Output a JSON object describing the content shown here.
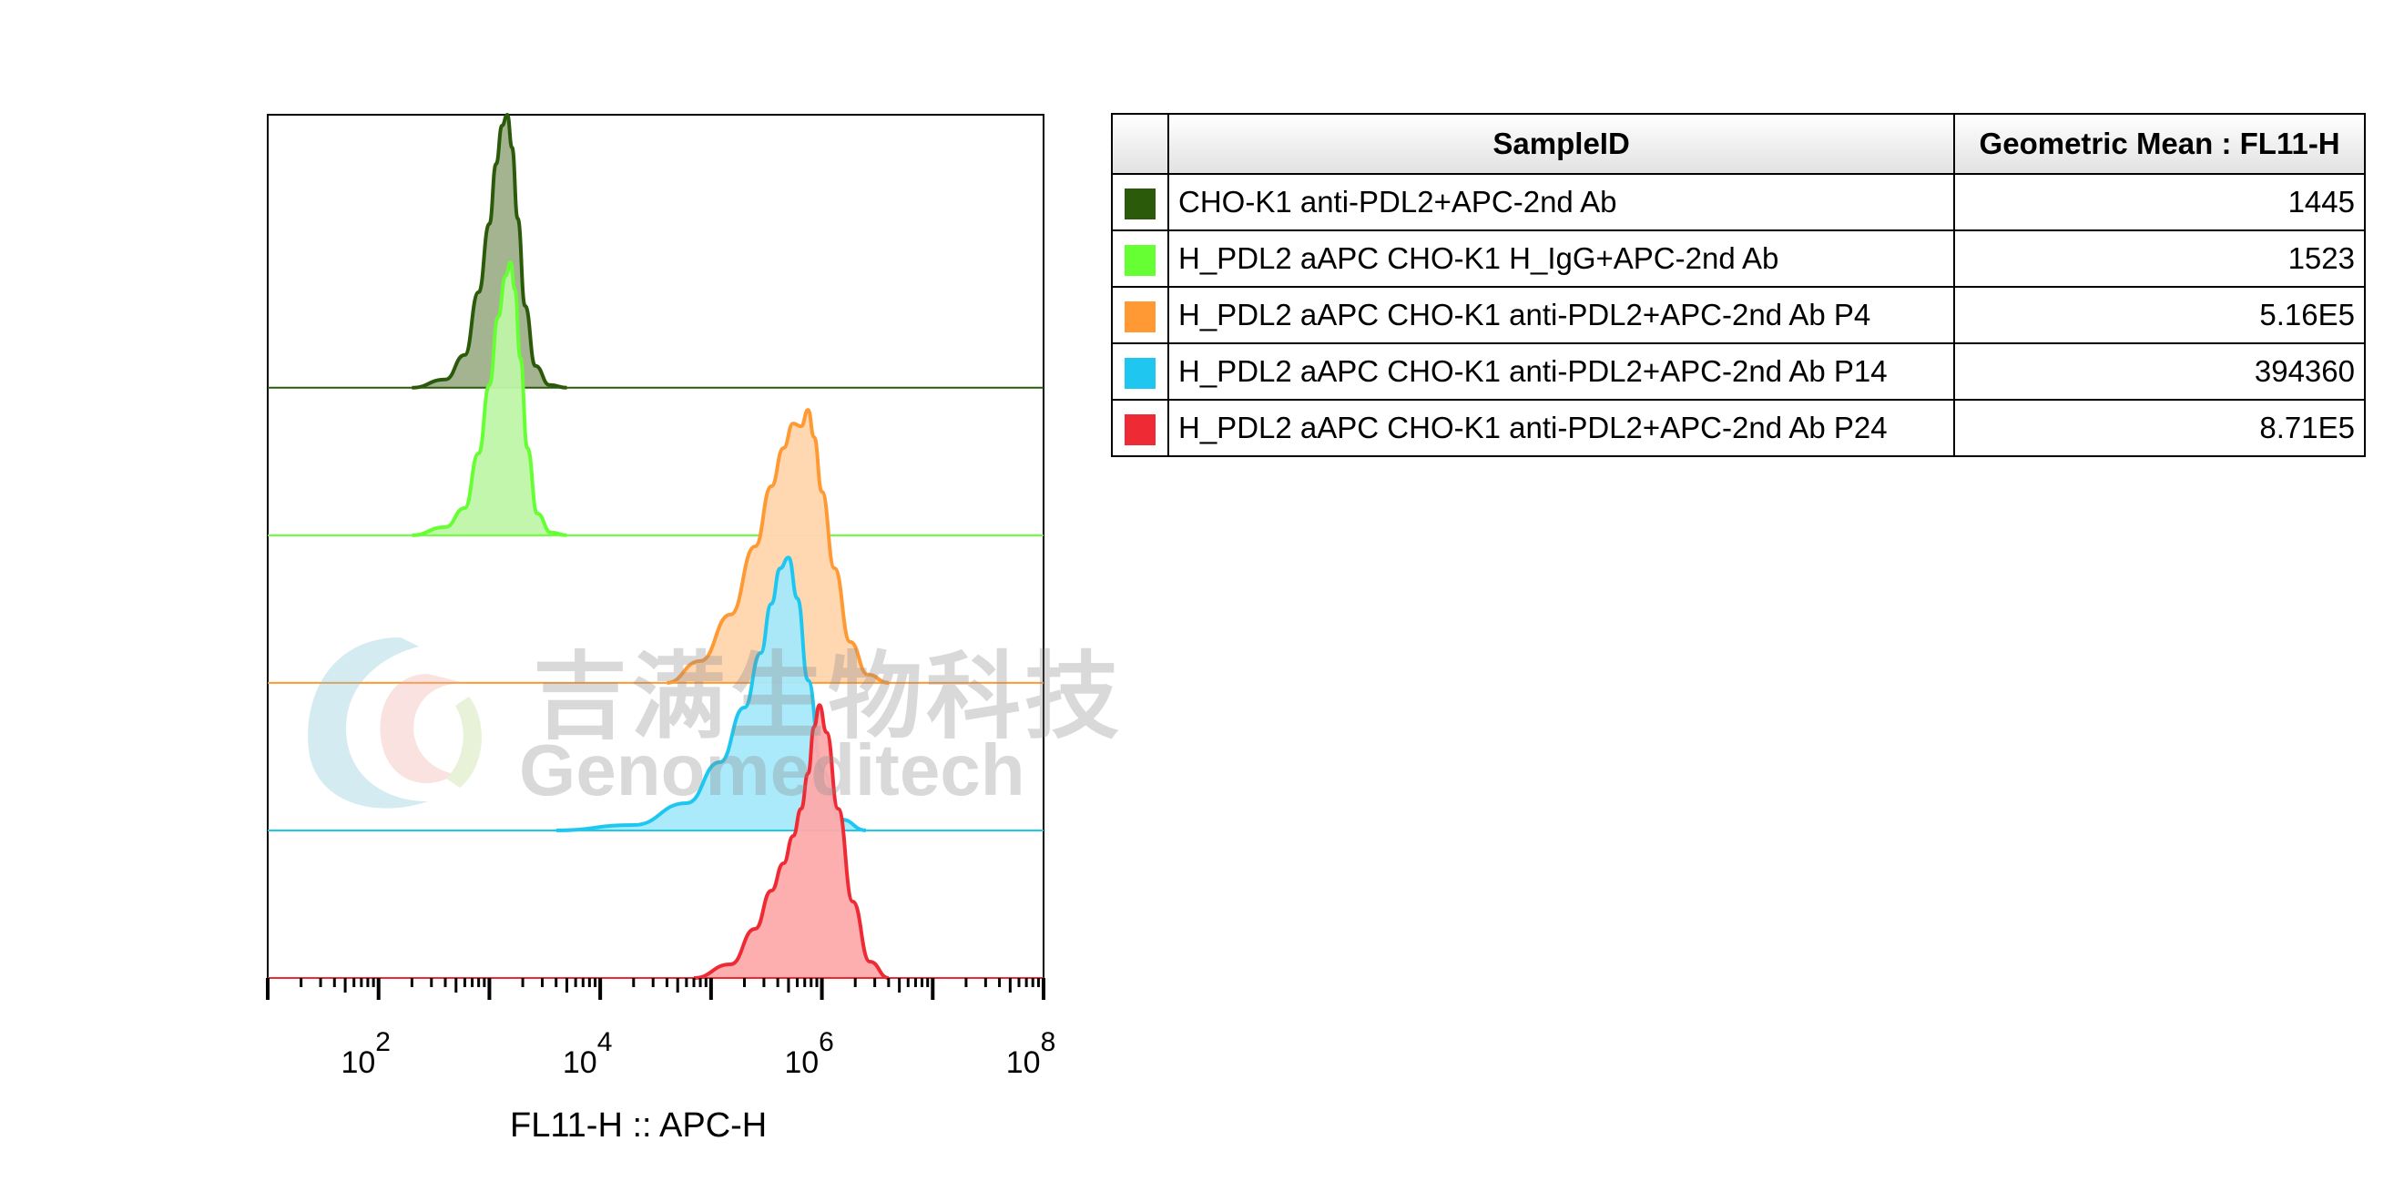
{
  "chart_data": {
    "type": "area",
    "x_scale": "log",
    "xlim": [
      10,
      100000000
    ],
    "xlabel": "FL11-H :: APC-H",
    "x_tick_labels": [
      {
        "base": "10",
        "exp": "2",
        "value": 100
      },
      {
        "base": "10",
        "exp": "4",
        "value": 10000
      },
      {
        "base": "10",
        "exp": "6",
        "value": 1000000
      },
      {
        "base": "10",
        "exp": "8",
        "value": 100000000
      }
    ],
    "series": [
      {
        "name": "CHO-K1 anti-PDL2+APC-2nd Ab",
        "line_color": "#2b5a0a",
        "fill_color": "#9fb08a",
        "x": [
          200,
          400,
          600,
          800,
          1000,
          1150,
          1300,
          1450,
          1600,
          1800,
          2100,
          2600,
          3500,
          5000
        ],
        "y": [
          0,
          0.03,
          0.12,
          0.35,
          0.6,
          0.82,
          0.96,
          1.0,
          0.88,
          0.62,
          0.3,
          0.08,
          0.01,
          0
        ]
      },
      {
        "name": "H_PDL2 aAPC CHO-K1 H_IgG+APC-2nd Ab",
        "line_color": "#66ff33",
        "fill_color": "#bff5a8",
        "x": [
          200,
          400,
          600,
          800,
          1000,
          1200,
          1400,
          1550,
          1700,
          1900,
          2200,
          2700,
          3600,
          5000
        ],
        "y": [
          0,
          0.03,
          0.1,
          0.3,
          0.55,
          0.8,
          0.95,
          1.0,
          0.9,
          0.65,
          0.32,
          0.08,
          0.01,
          0
        ]
      },
      {
        "name": "H_PDL2 aAPC CHO-K1 anti-PDL2+APC-2nd Ab P4",
        "line_color": "#ff9933",
        "fill_color": "#ffd6ae",
        "x": [
          40000,
          80000,
          150000,
          250000,
          350000,
          450000,
          550000,
          650000,
          750000,
          850000,
          1000000,
          1300000,
          1800000,
          2600000,
          4000000
        ],
        "y": [
          0,
          0.08,
          0.25,
          0.5,
          0.72,
          0.86,
          0.95,
          0.94,
          1.0,
          0.9,
          0.7,
          0.42,
          0.15,
          0.03,
          0
        ]
      },
      {
        "name": "H_PDL2 aAPC CHO-K1 anti-PDL2+APC-2nd Ab P14",
        "line_color": "#1fc7f0",
        "fill_color": "#a6e9fb",
        "x": [
          4000,
          20000,
          60000,
          120000,
          200000,
          280000,
          350000,
          420000,
          500000,
          600000,
          750000,
          1000000,
          1500000,
          2500000
        ],
        "y": [
          0,
          0.02,
          0.1,
          0.25,
          0.45,
          0.65,
          0.83,
          0.96,
          1.0,
          0.85,
          0.55,
          0.22,
          0.04,
          0
        ]
      },
      {
        "name": "H_PDL2 aAPC CHO-K1 anti-PDL2+APC-2nd Ab P24",
        "line_color": "#ee2b35",
        "fill_color": "#fdaaaa",
        "x": [
          70000,
          150000,
          250000,
          350000,
          450000,
          550000,
          650000,
          750000,
          850000,
          950000,
          1100000,
          1400000,
          1900000,
          2700000,
          4000000
        ],
        "y": [
          0,
          0.05,
          0.18,
          0.32,
          0.42,
          0.52,
          0.62,
          0.75,
          0.92,
          1.0,
          0.9,
          0.62,
          0.28,
          0.06,
          0
        ]
      }
    ]
  },
  "table": {
    "headers": [
      "SampleID",
      "Geometric Mean : FL11-H"
    ],
    "rows": [
      {
        "color": "#2b5a0a",
        "sample": "CHO-K1 anti-PDL2+APC-2nd Ab",
        "value": "1445"
      },
      {
        "color": "#66ff33",
        "sample": "H_PDL2 aAPC CHO-K1 H_IgG+APC-2nd Ab",
        "value": "1523"
      },
      {
        "color": "#ff9933",
        "sample": "H_PDL2 aAPC CHO-K1 anti-PDL2+APC-2nd Ab P4",
        "value": "5.16E5"
      },
      {
        "color": "#1fc7f0",
        "sample": "H_PDL2 aAPC CHO-K1 anti-PDL2+APC-2nd Ab P14",
        "value": "394360"
      },
      {
        "color": "#ee2b35",
        "sample": "H_PDL2 aAPC CHO-K1 anti-PDL2+APC-2nd Ab P24",
        "value": "8.71E5"
      }
    ]
  },
  "watermark": {
    "cn": "吉满生物科技",
    "en": "Genomeditech"
  }
}
